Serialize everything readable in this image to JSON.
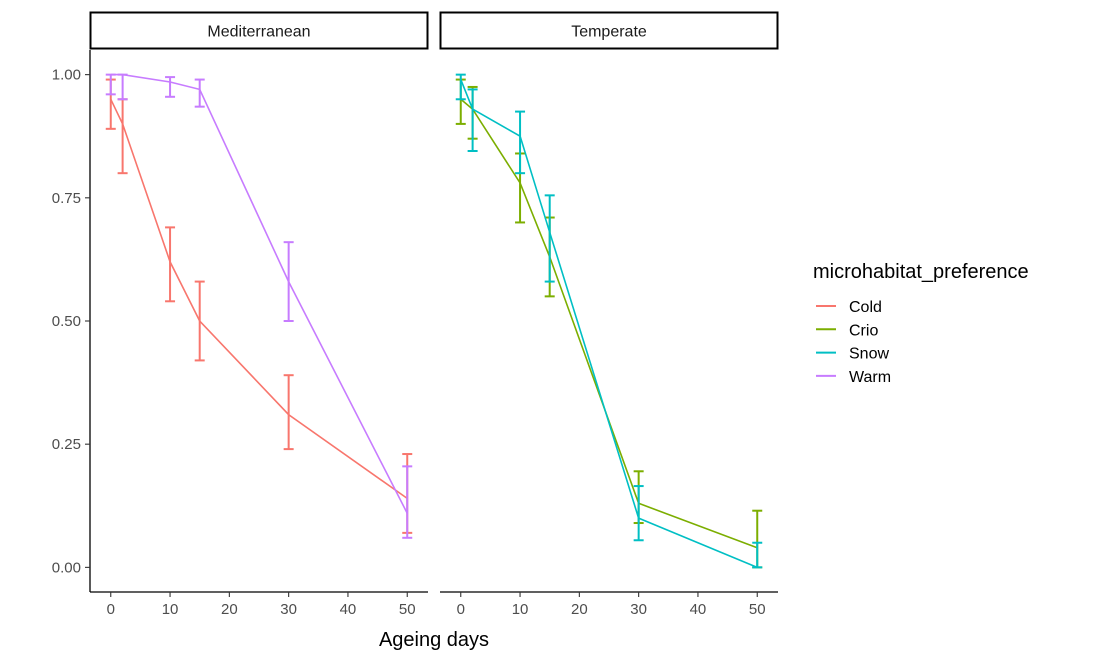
{
  "chart_data": {
    "type": "line",
    "xlabel": "Ageing days",
    "ylabel": "",
    "xlim": [
      -3.5,
      53.5
    ],
    "ylim": [
      -0.05,
      1.05
    ],
    "x_ticks": [
      0,
      10,
      20,
      30,
      40,
      50
    ],
    "x_tick_labels": [
      "0",
      "10",
      "20",
      "30",
      "40",
      "50"
    ],
    "y_ticks": [
      0,
      0.25,
      0.5,
      0.75,
      1.0
    ],
    "y_tick_labels": [
      "0.00",
      "0.25",
      "0.50",
      "0.75",
      "1.00"
    ],
    "grid": false,
    "legend": {
      "title": "microhabitat_preference",
      "position": "right",
      "entries": [
        "Cold",
        "Crio",
        "Snow",
        "Warm"
      ]
    },
    "colors": {
      "Cold": "#F8766D",
      "Crio": "#7CAE00",
      "Snow": "#00BFC4",
      "Warm": "#C77CFF"
    },
    "facets": [
      {
        "label": "Mediterranean",
        "series": [
          {
            "name": "Cold",
            "points": [
              {
                "x": 0,
                "y": 0.95,
                "lo": 0.89,
                "hi": 0.99
              },
              {
                "x": 2,
                "y": 0.9,
                "lo": 0.8,
                "hi": 0.95
              },
              {
                "x": 10,
                "y": 0.62,
                "lo": 0.54,
                "hi": 0.69
              },
              {
                "x": 15,
                "y": 0.5,
                "lo": 0.42,
                "hi": 0.58
              },
              {
                "x": 30,
                "y": 0.31,
                "lo": 0.24,
                "hi": 0.39
              },
              {
                "x": 50,
                "y": 0.14,
                "lo": 0.07,
                "hi": 0.23
              }
            ]
          },
          {
            "name": "Warm",
            "points": [
              {
                "x": 0,
                "y": 1.0,
                "lo": 0.96,
                "hi": 1.0
              },
              {
                "x": 2,
                "y": 1.0,
                "lo": 0.95,
                "hi": 1.0
              },
              {
                "x": 10,
                "y": 0.985,
                "lo": 0.955,
                "hi": 0.995
              },
              {
                "x": 15,
                "y": 0.97,
                "lo": 0.935,
                "hi": 0.99
              },
              {
                "x": 30,
                "y": 0.58,
                "lo": 0.5,
                "hi": 0.66
              },
              {
                "x": 50,
                "y": 0.11,
                "lo": 0.06,
                "hi": 0.205
              }
            ]
          }
        ]
      },
      {
        "label": "Temperate",
        "series": [
          {
            "name": "Crio",
            "points": [
              {
                "x": 0,
                "y": 0.95,
                "lo": 0.9,
                "hi": 0.99
              },
              {
                "x": 2,
                "y": 0.93,
                "lo": 0.87,
                "hi": 0.975
              },
              {
                "x": 10,
                "y": 0.78,
                "lo": 0.7,
                "hi": 0.84
              },
              {
                "x": 15,
                "y": 0.63,
                "lo": 0.55,
                "hi": 0.71
              },
              {
                "x": 30,
                "y": 0.13,
                "lo": 0.09,
                "hi": 0.195
              },
              {
                "x": 50,
                "y": 0.04,
                "lo": 0.0,
                "hi": 0.115
              }
            ]
          },
          {
            "name": "Snow",
            "points": [
              {
                "x": 0,
                "y": 0.99,
                "lo": 0.95,
                "hi": 1.0
              },
              {
                "x": 2,
                "y": 0.93,
                "lo": 0.845,
                "hi": 0.97
              },
              {
                "x": 10,
                "y": 0.875,
                "lo": 0.8,
                "hi": 0.925
              },
              {
                "x": 15,
                "y": 0.68,
                "lo": 0.58,
                "hi": 0.755
              },
              {
                "x": 30,
                "y": 0.1,
                "lo": 0.055,
                "hi": 0.165
              },
              {
                "x": 50,
                "y": 0.0,
                "lo": 0.0,
                "hi": 0.05
              }
            ]
          }
        ]
      }
    ]
  }
}
